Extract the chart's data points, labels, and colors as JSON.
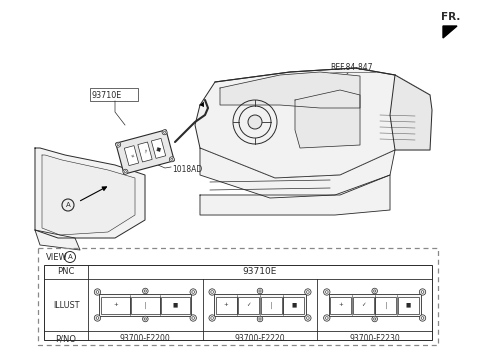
{
  "fr_label": "FR.",
  "ref_label": "REF.84-847",
  "label_93710E": "93710E",
  "label_1018AD": "1018AD",
  "view_label": "VIEW",
  "circle_A": "A",
  "pnc_label": "PNC",
  "pnc_value": "93710E",
  "illust_label": "ILLUST",
  "pno_label": "P/NO",
  "part_numbers": [
    "93700-F2200",
    "93700-F2220",
    "93700-F2230"
  ],
  "bg_color": "#ffffff",
  "lc": "#2a2a2a",
  "tc": "#2a2a2a",
  "dash_color": "#888888",
  "fill_light": "#f2f2f2",
  "fill_mid": "#e8e8e8"
}
